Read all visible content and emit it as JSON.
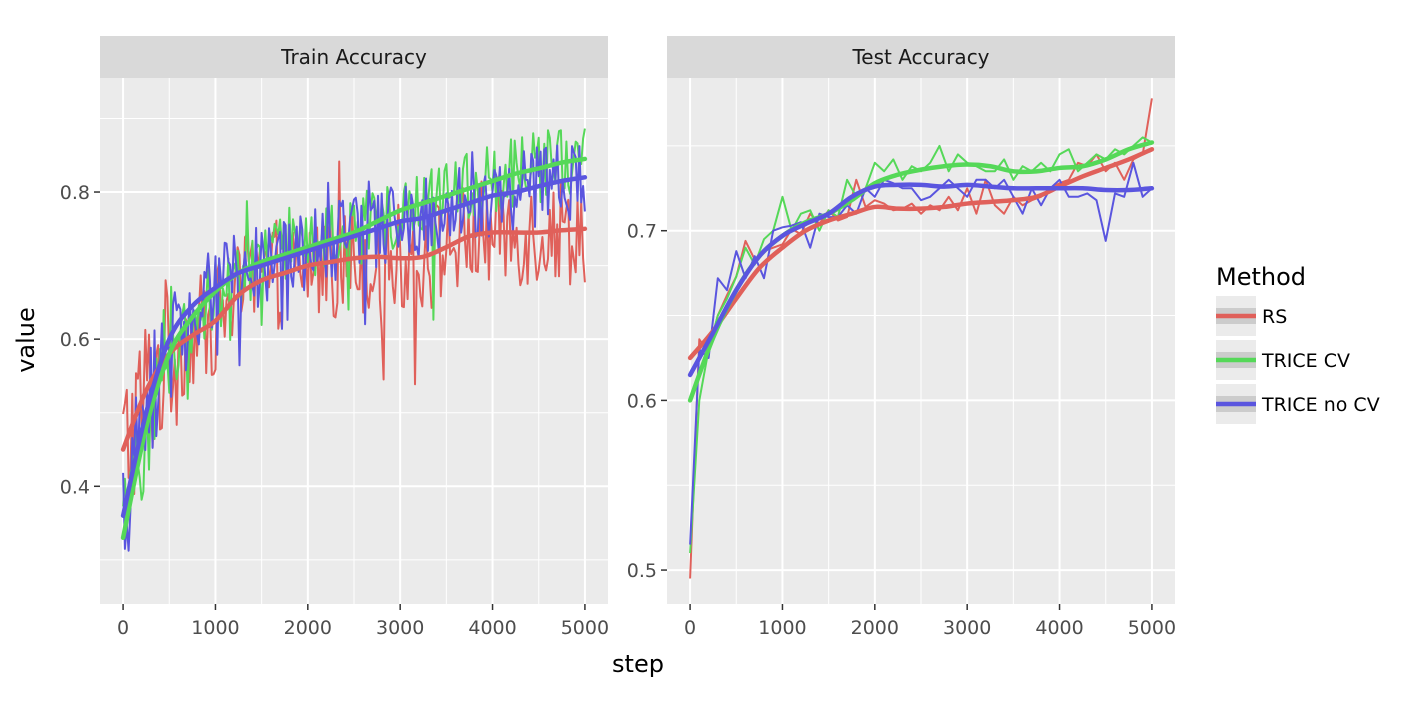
{
  "chart_data": {
    "type": "line",
    "xlabel": "step",
    "ylabel": "value",
    "legend": {
      "title": "Method",
      "position": "right"
    },
    "colors": {
      "RS": "#E0605A",
      "TRICE CV": "#55D858",
      "TRICE no CV": "#5A55DF"
    },
    "grid": true,
    "panels": [
      {
        "title": "Train Accuracy",
        "xlim": [
          -250,
          5250
        ],
        "ylim": [
          0.24,
          0.955
        ],
        "xticks": [
          0,
          1000,
          2000,
          3000,
          4000,
          5000
        ],
        "yticks": [
          0.4,
          0.6,
          0.8
        ],
        "ytick_labels": [
          "0.4",
          "0.6",
          "0.8"
        ],
        "series": [
          {
            "name": "RS",
            "smooth": [
              [
                0,
                0.45
              ],
              [
                250,
                0.53
              ],
              [
                500,
                0.58
              ],
              [
                750,
                0.605
              ],
              [
                1000,
                0.625
              ],
              [
                1250,
                0.66
              ],
              [
                1500,
                0.68
              ],
              [
                1750,
                0.69
              ],
              [
                2000,
                0.7
              ],
              [
                2250,
                0.705
              ],
              [
                2500,
                0.71
              ],
              [
                2750,
                0.712
              ],
              [
                3000,
                0.71
              ],
              [
                3250,
                0.712
              ],
              [
                3500,
                0.725
              ],
              [
                3750,
                0.74
              ],
              [
                4000,
                0.745
              ],
              [
                4250,
                0.745
              ],
              [
                4500,
                0.745
              ],
              [
                4750,
                0.748
              ],
              [
                5000,
                0.75
              ]
            ]
          },
          {
            "name": "TRICE CV",
            "smooth": [
              [
                0,
                0.33
              ],
              [
                250,
                0.48
              ],
              [
                500,
                0.58
              ],
              [
                750,
                0.63
              ],
              [
                1000,
                0.665
              ],
              [
                1250,
                0.69
              ],
              [
                1500,
                0.705
              ],
              [
                1750,
                0.715
              ],
              [
                2000,
                0.725
              ],
              [
                2250,
                0.735
              ],
              [
                2500,
                0.745
              ],
              [
                2750,
                0.76
              ],
              [
                3000,
                0.775
              ],
              [
                3250,
                0.785
              ],
              [
                3500,
                0.795
              ],
              [
                3750,
                0.805
              ],
              [
                4000,
                0.815
              ],
              [
                4250,
                0.825
              ],
              [
                4500,
                0.832
              ],
              [
                4750,
                0.84
              ],
              [
                5000,
                0.845
              ]
            ]
          },
          {
            "name": "TRICE no CV",
            "smooth": [
              [
                0,
                0.36
              ],
              [
                250,
                0.5
              ],
              [
                500,
                0.6
              ],
              [
                750,
                0.645
              ],
              [
                1000,
                0.67
              ],
              [
                1250,
                0.69
              ],
              [
                1500,
                0.7
              ],
              [
                1750,
                0.71
              ],
              [
                2000,
                0.72
              ],
              [
                2250,
                0.73
              ],
              [
                2500,
                0.74
              ],
              [
                2750,
                0.75
              ],
              [
                3000,
                0.76
              ],
              [
                3250,
                0.765
              ],
              [
                3500,
                0.775
              ],
              [
                3750,
                0.785
              ],
              [
                4000,
                0.795
              ],
              [
                4250,
                0.8
              ],
              [
                4500,
                0.808
              ],
              [
                4750,
                0.815
              ],
              [
                5000,
                0.82
              ]
            ]
          }
        ]
      },
      {
        "title": "Test Accuracy",
        "xlim": [
          -250,
          5250
        ],
        "ylim": [
          0.48,
          0.79
        ],
        "xticks": [
          0,
          1000,
          2000,
          3000,
          4000,
          5000
        ],
        "yticks": [
          0.5,
          0.6,
          0.7
        ],
        "ytick_labels": [
          "0.5",
          "0.6",
          "0.7"
        ],
        "series": [
          {
            "name": "RS",
            "x": [
              0,
              100,
              200,
              300,
              400,
              500,
              600,
              700,
              800,
              900,
              1000,
              1100,
              1200,
              1300,
              1400,
              1500,
              1600,
              1700,
              1800,
              1900,
              2000,
              2100,
              2200,
              2300,
              2400,
              2500,
              2600,
              2700,
              2800,
              2900,
              3000,
              3100,
              3200,
              3300,
              3400,
              3500,
              3600,
              3700,
              3800,
              3900,
              4000,
              4100,
              4200,
              4300,
              4400,
              4500,
              4600,
              4700,
              4800,
              4900,
              5000
            ],
            "raw": [
              0.495,
              0.636,
              0.628,
              0.65,
              0.662,
              0.673,
              0.694,
              0.683,
              0.688,
              0.69,
              0.692,
              0.701,
              0.698,
              0.71,
              0.704,
              0.712,
              0.706,
              0.708,
              0.73,
              0.714,
              0.718,
              0.716,
              0.712,
              0.713,
              0.716,
              0.71,
              0.715,
              0.712,
              0.72,
              0.712,
              0.725,
              0.71,
              0.73,
              0.715,
              0.71,
              0.72,
              0.715,
              0.718,
              0.72,
              0.725,
              0.728,
              0.73,
              0.74,
              0.738,
              0.745,
              0.735,
              0.74,
              0.73,
              0.742,
              0.745,
              0.778
            ],
            "smooth": [
              [
                0,
                0.625
              ],
              [
                250,
                0.641
              ],
              [
                500,
                0.66
              ],
              [
                750,
                0.678
              ],
              [
                1000,
                0.69
              ],
              [
                1250,
                0.7
              ],
              [
                1500,
                0.706
              ],
              [
                1750,
                0.71
              ],
              [
                2000,
                0.714
              ],
              [
                2250,
                0.713
              ],
              [
                2500,
                0.713
              ],
              [
                2750,
                0.714
              ],
              [
                3000,
                0.716
              ],
              [
                3250,
                0.717
              ],
              [
                3500,
                0.718
              ],
              [
                3750,
                0.72
              ],
              [
                4000,
                0.726
              ],
              [
                4250,
                0.732
              ],
              [
                4500,
                0.737
              ],
              [
                4750,
                0.742
              ],
              [
                5000,
                0.748
              ]
            ]
          },
          {
            "name": "TRICE CV",
            "x": [
              0,
              100,
              200,
              300,
              400,
              500,
              600,
              700,
              800,
              900,
              1000,
              1100,
              1200,
              1300,
              1400,
              1500,
              1600,
              1700,
              1800,
              1900,
              2000,
              2100,
              2200,
              2300,
              2400,
              2500,
              2600,
              2700,
              2800,
              2900,
              3000,
              3100,
              3200,
              3300,
              3400,
              3500,
              3600,
              3700,
              3800,
              3900,
              4000,
              4100,
              4200,
              4300,
              4400,
              4500,
              4600,
              4700,
              4800,
              4900,
              5000
            ],
            "raw": [
              0.51,
              0.6,
              0.63,
              0.65,
              0.66,
              0.673,
              0.69,
              0.68,
              0.695,
              0.7,
              0.72,
              0.7,
              0.71,
              0.712,
              0.7,
              0.712,
              0.708,
              0.73,
              0.72,
              0.725,
              0.74,
              0.735,
              0.742,
              0.73,
              0.738,
              0.735,
              0.74,
              0.75,
              0.735,
              0.745,
              0.74,
              0.738,
              0.735,
              0.735,
              0.742,
              0.73,
              0.738,
              0.735,
              0.74,
              0.735,
              0.745,
              0.748,
              0.735,
              0.74,
              0.745,
              0.742,
              0.748,
              0.745,
              0.75,
              0.755,
              0.752
            ],
            "smooth": [
              [
                0,
                0.6
              ],
              [
                250,
                0.637
              ],
              [
                500,
                0.665
              ],
              [
                750,
                0.685
              ],
              [
                1000,
                0.697
              ],
              [
                1250,
                0.705
              ],
              [
                1500,
                0.71
              ],
              [
                1750,
                0.718
              ],
              [
                2000,
                0.728
              ],
              [
                2250,
                0.733
              ],
              [
                2500,
                0.736
              ],
              [
                2750,
                0.738
              ],
              [
                3000,
                0.739
              ],
              [
                3250,
                0.738
              ],
              [
                3500,
                0.735
              ],
              [
                3750,
                0.735
              ],
              [
                4000,
                0.737
              ],
              [
                4250,
                0.738
              ],
              [
                4500,
                0.742
              ],
              [
                4750,
                0.748
              ],
              [
                5000,
                0.752
              ]
            ]
          },
          {
            "name": "TRICE no CV",
            "x": [
              0,
              100,
              200,
              300,
              400,
              500,
              600,
              700,
              800,
              900,
              1000,
              1100,
              1200,
              1300,
              1400,
              1500,
              1600,
              1700,
              1800,
              1900,
              2000,
              2100,
              2200,
              2300,
              2400,
              2500,
              2600,
              2700,
              2800,
              2900,
              3000,
              3100,
              3200,
              3300,
              3400,
              3500,
              3600,
              3700,
              3800,
              3900,
              4000,
              4100,
              4200,
              4300,
              4400,
              4500,
              4600,
              4700,
              4800,
              4900,
              5000
            ],
            "raw": [
              0.515,
              0.63,
              0.625,
              0.672,
              0.665,
              0.688,
              0.672,
              0.685,
              0.672,
              0.7,
              0.702,
              0.703,
              0.705,
              0.69,
              0.71,
              0.708,
              0.708,
              0.715,
              0.71,
              0.725,
              0.72,
              0.73,
              0.728,
              0.725,
              0.725,
              0.718,
              0.72,
              0.725,
              0.73,
              0.725,
              0.72,
              0.73,
              0.73,
              0.725,
              0.73,
              0.72,
              0.71,
              0.725,
              0.715,
              0.725,
              0.73,
              0.72,
              0.72,
              0.722,
              0.718,
              0.694,
              0.722,
              0.72,
              0.74,
              0.72,
              0.725
            ],
            "smooth": [
              [
                0,
                0.615
              ],
              [
                250,
                0.64
              ],
              [
                500,
                0.665
              ],
              [
                750,
                0.685
              ],
              [
                1000,
                0.697
              ],
              [
                1250,
                0.704
              ],
              [
                1500,
                0.71
              ],
              [
                1750,
                0.72
              ],
              [
                2000,
                0.726
              ],
              [
                2250,
                0.727
              ],
              [
                2500,
                0.727
              ],
              [
                2750,
                0.726
              ],
              [
                3000,
                0.727
              ],
              [
                3250,
                0.726
              ],
              [
                3500,
                0.725
              ],
              [
                3750,
                0.725
              ],
              [
                4000,
                0.725
              ],
              [
                4250,
                0.725
              ],
              [
                4500,
                0.724
              ],
              [
                4750,
                0.724
              ],
              [
                5000,
                0.725
              ]
            ]
          }
        ]
      }
    ]
  }
}
